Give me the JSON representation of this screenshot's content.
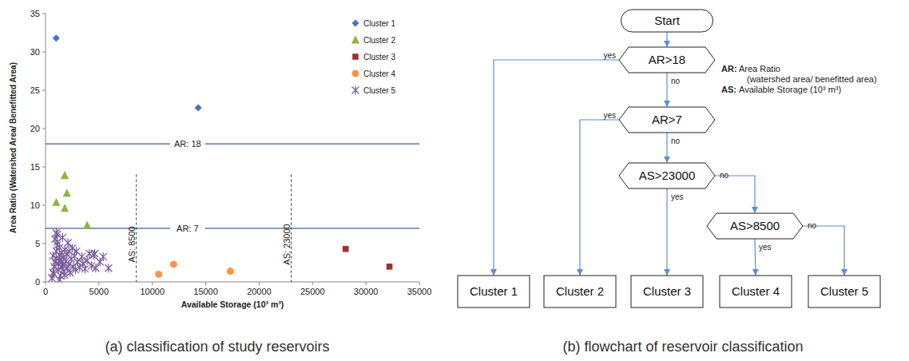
{
  "chart_data": {
    "type": "scatter",
    "caption": "(a) classification of study reservoirs",
    "x_label": "Available Storage (10³ m³)",
    "y_label": "Area Ratio (Watershed Area/ Benefitted Area)",
    "xlim": [
      0,
      35000
    ],
    "xticks": [
      0,
      5000,
      10000,
      15000,
      20000,
      25000,
      30000,
      35000
    ],
    "ylim": [
      0,
      35
    ],
    "yticks": [
      0,
      5,
      10,
      15,
      20,
      25,
      30,
      35
    ],
    "grid": false,
    "legend": "top-right",
    "reference_lines": [
      {
        "axis": "y",
        "value": 18,
        "label": "AR: 18",
        "line_style": "solid"
      },
      {
        "axis": "y",
        "value": 7,
        "label": "AR: 7",
        "line_style": "solid"
      },
      {
        "axis": "x",
        "value": 8500,
        "label": "AS: 8500",
        "line_style": "dashed"
      },
      {
        "axis": "x",
        "value": 23000,
        "label": "AS: 23000",
        "line_style": "dashed"
      }
    ],
    "series": [
      {
        "name": "Cluster 1",
        "color": "#4472c4",
        "marker": "diamond",
        "x": [
          1000,
          14300
        ],
        "values": [
          31.8,
          22.7
        ]
      },
      {
        "name": "Cluster 2",
        "color": "#8db53c",
        "marker": "triangle",
        "x": [
          1000,
          1800,
          2000,
          1800,
          3900
        ],
        "values": [
          10.4,
          13.9,
          11.6,
          9.6,
          7.4
        ]
      },
      {
        "name": "Cluster 3",
        "color": "#a3302e",
        "marker": "square",
        "x": [
          28100,
          32200
        ],
        "values": [
          4.3,
          2.0
        ]
      },
      {
        "name": "Cluster 4",
        "color": "#f79646",
        "marker": "circle",
        "x": [
          10600,
          12000,
          17300
        ],
        "values": [
          1.0,
          2.3,
          1.4
        ]
      },
      {
        "name": "Cluster 5",
        "color": "#7a5c9e",
        "marker": "asterisk",
        "x": [
          600,
          700,
          800,
          900,
          1000,
          1000,
          1100,
          1100,
          1200,
          1200,
          1300,
          1300,
          1400,
          1400,
          1500,
          1500,
          1600,
          1600,
          1700,
          1700,
          1800,
          1900,
          2000,
          2000,
          2100,
          2200,
          2300,
          2400,
          2500,
          2600,
          2700,
          2800,
          2900,
          3000,
          3200,
          3400,
          3500,
          3700,
          3900,
          4100,
          4300,
          4500,
          4700,
          5100,
          5400,
          5900,
          800,
          900,
          1000,
          1300,
          1100,
          1500,
          700,
          2200,
          1800,
          4600
        ],
        "values": [
          0.5,
          1.2,
          2.0,
          2.6,
          3.1,
          4.0,
          5.2,
          6.2,
          1.6,
          2.4,
          3.5,
          4.5,
          0.8,
          2.9,
          1.9,
          3.8,
          5.8,
          2.2,
          1.4,
          3.2,
          4.2,
          2.7,
          1.8,
          3.6,
          5.1,
          2.3,
          1.2,
          3.0,
          4.4,
          2.0,
          3.4,
          1.6,
          4.0,
          2.6,
          1.9,
          3.3,
          2.4,
          1.7,
          2.8,
          3.7,
          2.1,
          3.5,
          1.8,
          2.6,
          3.3,
          1.8,
          1.0,
          5.6,
          6.4,
          0.3,
          4.8,
          2.6,
          3.4,
          4.0,
          0.9,
          3.7
        ]
      }
    ]
  },
  "diagram": {
    "caption": "(b) flowchart of reservoir classification",
    "nodes": [
      {
        "label": "Start",
        "shape": "terminal"
      },
      {
        "label": "AR>18",
        "shape": "decision"
      },
      {
        "label": "AR>7",
        "shape": "decision"
      },
      {
        "label": "AS>23000",
        "shape": "decision"
      },
      {
        "label": "AS>8500",
        "shape": "decision"
      },
      {
        "label": "Cluster 1",
        "shape": "process"
      },
      {
        "label": "Cluster 2",
        "shape": "process"
      },
      {
        "label": "Cluster 3",
        "shape": "process"
      },
      {
        "label": "Cluster 4",
        "shape": "process"
      },
      {
        "label": "Cluster 5",
        "shape": "process"
      }
    ],
    "edges": [
      {
        "from": 0,
        "to": 1
      },
      {
        "from": 1,
        "to": 5,
        "label": "yes"
      },
      {
        "from": 1,
        "to": 2,
        "label": "no"
      },
      {
        "from": 2,
        "to": 6,
        "label": "yes"
      },
      {
        "from": 2,
        "to": 3,
        "label": "no"
      },
      {
        "from": 3,
        "to": 7,
        "label": "yes"
      },
      {
        "from": 3,
        "to": 4,
        "label": "no"
      },
      {
        "from": 4,
        "to": 8,
        "label": "yes"
      },
      {
        "from": 4,
        "to": 9,
        "label": "no"
      }
    ],
    "glossary": [
      {
        "term": "AR:",
        "lines": [
          "Area Ratio",
          "(watershed area/ benefitted area)"
        ]
      },
      {
        "term": "AS:",
        "lines": [
          "Available Storage (10³ m³)"
        ]
      }
    ]
  }
}
